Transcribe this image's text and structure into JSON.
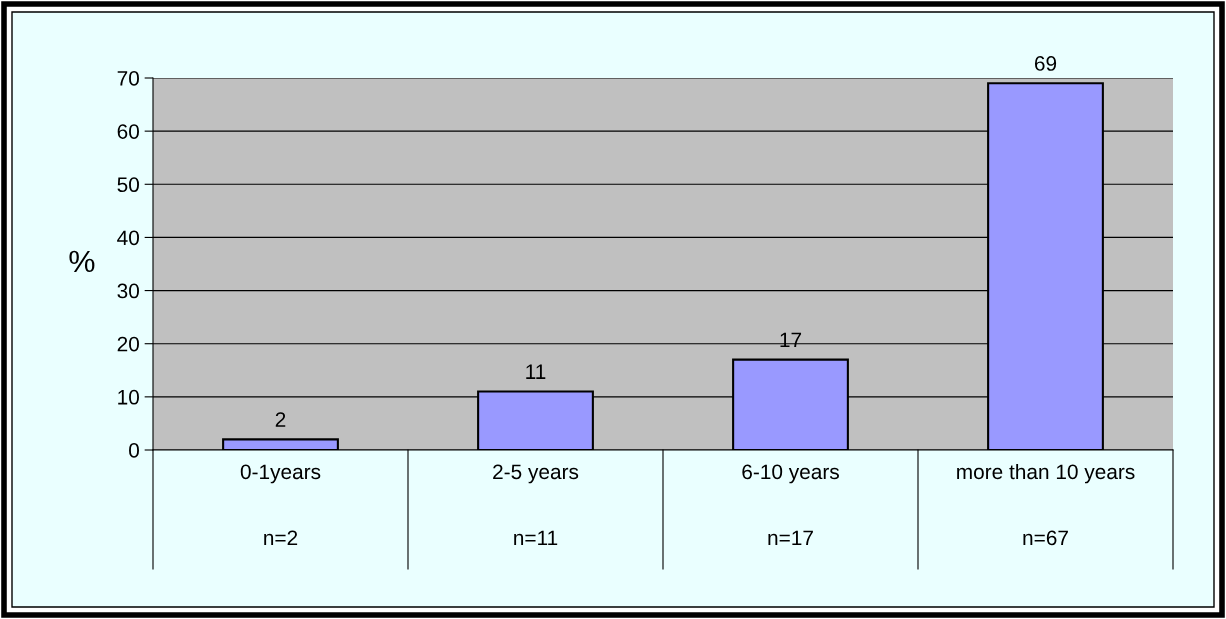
{
  "chart_data": {
    "type": "bar",
    "ylabel": "%",
    "categories": [
      "0-1years\n\nn=2",
      "2-5 years\n\nn=11",
      "6-10 years\n\nn=17",
      "more than 10 years\n\nn=67"
    ],
    "values": [
      2,
      11,
      17,
      69
    ],
    "color": "#9999ff",
    "ylim": [
      0,
      70
    ],
    "yticks": [
      0,
      10,
      20,
      30,
      40,
      50,
      60,
      70
    ],
    "grid": "y",
    "data_labels": true
  }
}
